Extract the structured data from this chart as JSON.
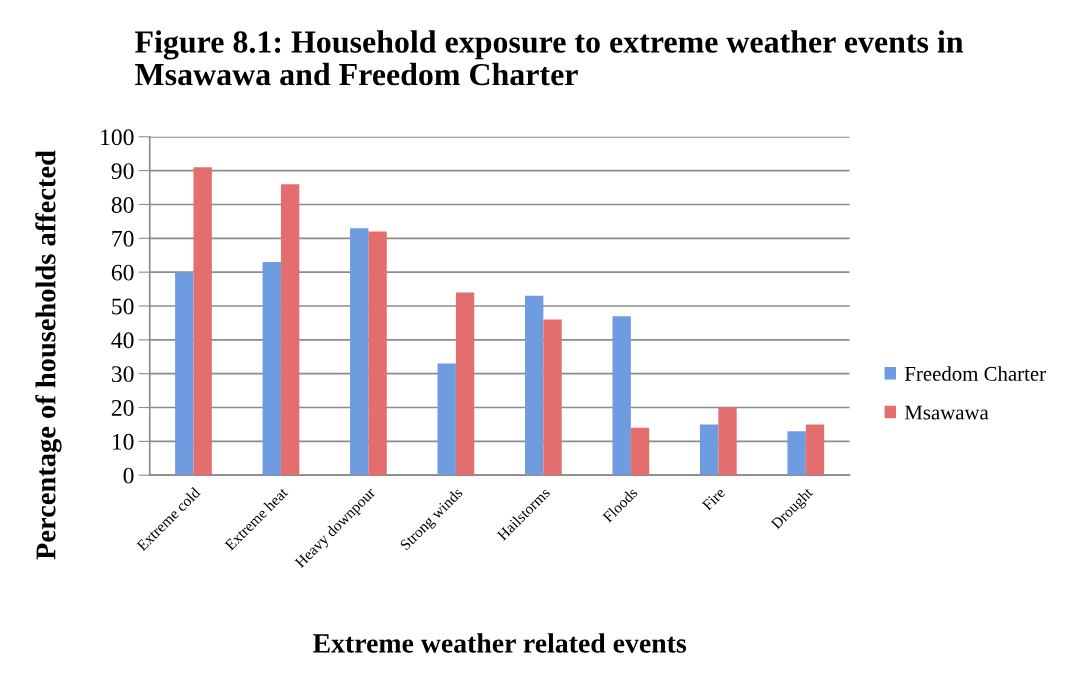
{
  "chart_data": {
    "type": "bar",
    "title": "Figure 8.1: Household exposure to extreme weather events in\nMsawawa and Freedom Charter",
    "xlabel": "Extreme weather related events",
    "ylabel": "Percentage of households affected",
    "categories": [
      "Extreme cold",
      "Extreme heat",
      "Heavy downpour",
      "Strong winds",
      "Hailstorms",
      "Floods",
      "Fire",
      "Drought"
    ],
    "series": [
      {
        "name": "Freedom Charter",
        "color": "#6f9be0",
        "values": [
          60,
          63,
          73,
          33,
          53,
          47,
          15,
          13
        ]
      },
      {
        "name": "Msawawa",
        "color": "#e46e6e",
        "values": [
          91,
          86,
          72,
          54,
          46,
          14,
          20,
          15
        ]
      }
    ],
    "ylim": [
      0,
      100
    ],
    "yticks": [
      0,
      10,
      20,
      30,
      40,
      50,
      60,
      70,
      80,
      90,
      100
    ],
    "grid": "y",
    "legend": "right"
  }
}
